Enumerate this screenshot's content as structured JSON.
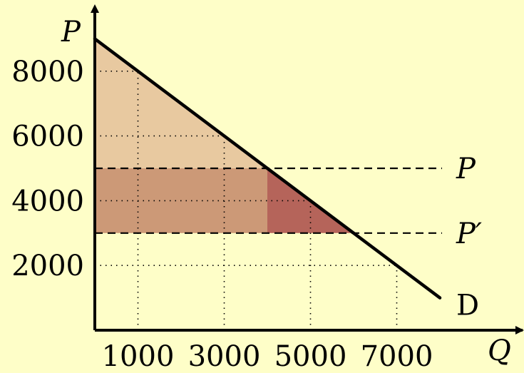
{
  "chart_data": {
    "type": "area",
    "xlabel": "Q",
    "ylabel": "P",
    "x_ticks": [
      1000,
      3000,
      5000,
      7000
    ],
    "x_tick_labels": [
      "1000",
      "3000",
      "5000",
      "7000"
    ],
    "y_ticks": [
      2000,
      4000,
      6000,
      8000
    ],
    "y_tick_labels": [
      "2000",
      "4000",
      "6000",
      "8000"
    ],
    "xlim": [
      0,
      8300
    ],
    "ylim": [
      0,
      10000
    ],
    "grid": "dotted",
    "demand": {
      "name": "D",
      "points": [
        [
          0,
          9000
        ],
        [
          8000,
          1000
        ]
      ]
    },
    "price_lines": [
      {
        "label": "P",
        "value": 5000,
        "quantity": 4000
      },
      {
        "label": "P′",
        "value": 3000,
        "quantity": 6000
      }
    ],
    "regions": [
      {
        "name": "consumer-surplus-at-P",
        "color": "#e8c9a0"
      },
      {
        "name": "surplus-gain-rectangle",
        "color": "#cc9977"
      },
      {
        "name": "surplus-gain-triangle",
        "color": "#b5645a"
      }
    ],
    "colors": {
      "background": "#fefec8",
      "line": "#000000"
    }
  }
}
